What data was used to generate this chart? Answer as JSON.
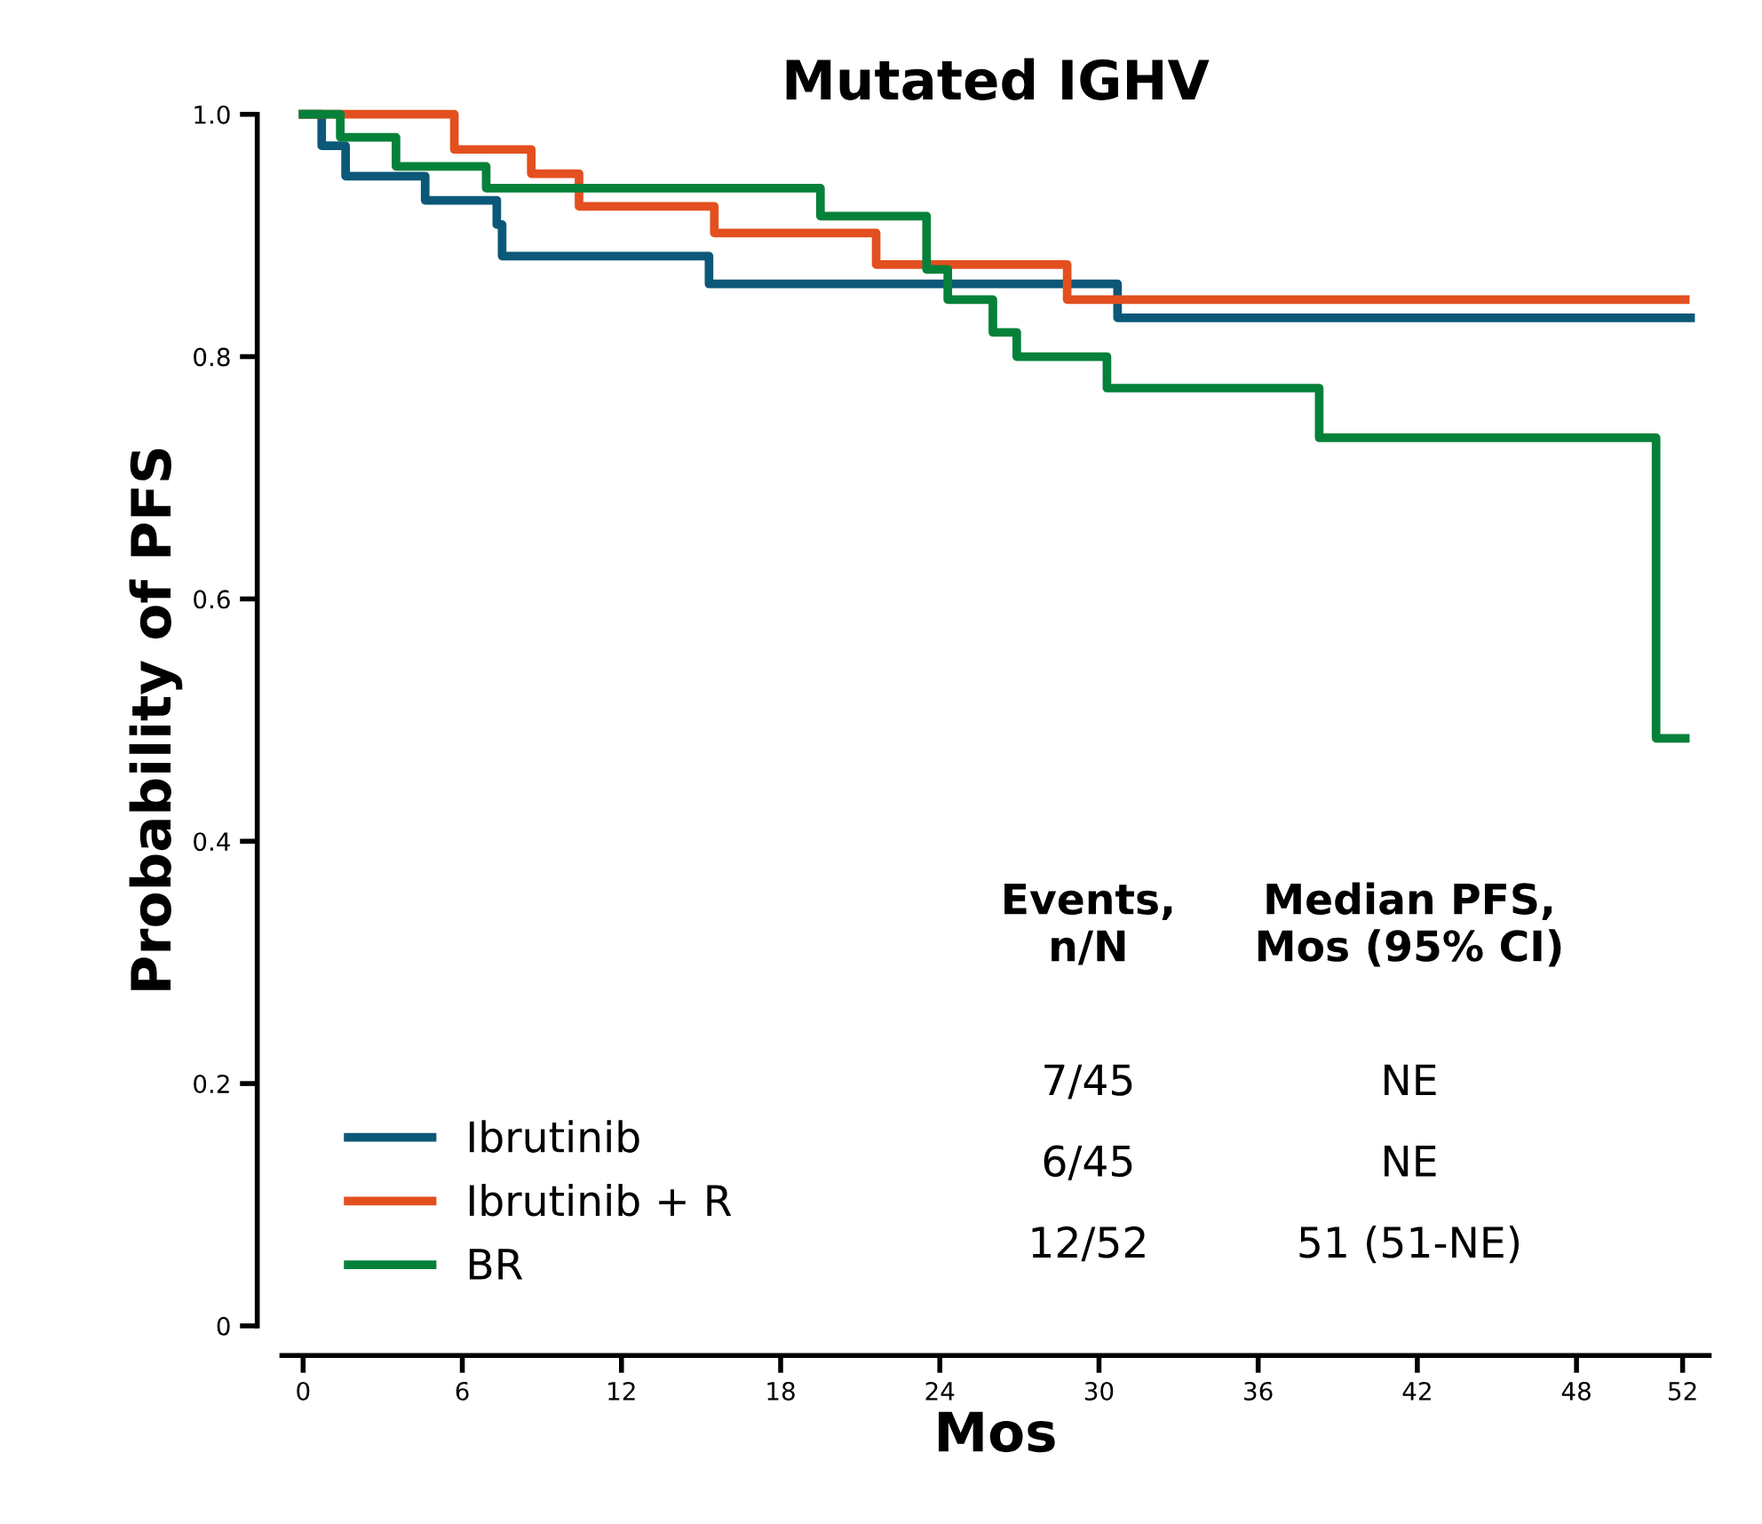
{
  "chart_data": {
    "type": "step",
    "title": "Mutated IGHV",
    "xlabel": "Mos",
    "ylabel": "Probability of PFS",
    "xlim": [
      -0.8,
      53
    ],
    "ylim": [
      0,
      1.0
    ],
    "xticks": [
      0,
      6,
      12,
      18,
      24,
      30,
      36,
      42,
      48,
      52
    ],
    "yticks": [
      {
        "value": 0,
        "label": "0"
      },
      0.2,
      0.4,
      0.6,
      0.8,
      {
        "value": 1.0,
        "label": "1.0"
      }
    ],
    "grid": false,
    "legend": "bottom left",
    "line_style": "solid",
    "series": [
      {
        "name": "Ibrutinib",
        "color": "#0b5878",
        "x": [
          0,
          0.7,
          1.6,
          4.6,
          7.3,
          7.5,
          15.3,
          30.7,
          52.3
        ],
        "values": [
          1.0,
          0.974,
          0.949,
          0.929,
          0.909,
          0.883,
          0.86,
          0.832,
          0.832
        ]
      },
      {
        "name": "Ibrutinib + R",
        "color": "#e34f1f",
        "x": [
          0,
          5.7,
          8.6,
          10.4,
          15.5,
          21.6,
          28.8,
          52.1
        ],
        "values": [
          1.0,
          0.971,
          0.951,
          0.924,
          0.902,
          0.876,
          0.847,
          0.847
        ]
      },
      {
        "name": "BR",
        "color": "#068139",
        "x": [
          0,
          1.4,
          3.5,
          6.9,
          19.5,
          23.5,
          24.3,
          26.0,
          26.9,
          30.3,
          38.3,
          51.0,
          52.1
        ],
        "values": [
          1.0,
          0.981,
          0.957,
          0.939,
          0.916,
          0.872,
          0.847,
          0.82,
          0.8,
          0.774,
          0.733,
          0.485,
          0.485
        ]
      }
    ],
    "annotations": [
      "Events,\nn/N",
      "Median PFS,\nMos (95% CI)",
      "7/45",
      "NE",
      "6/45",
      "NE",
      "12/52",
      "51 (51-NE)"
    ]
  }
}
